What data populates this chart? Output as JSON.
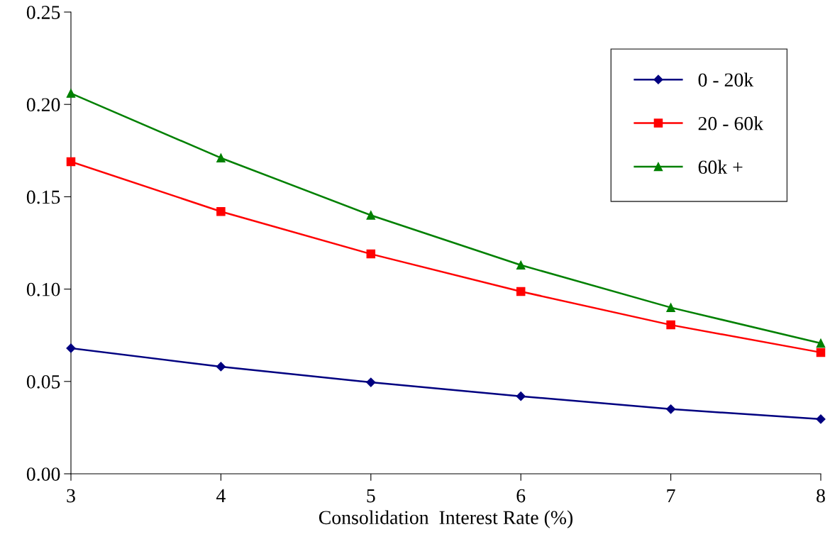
{
  "chart_data": {
    "type": "line",
    "xlabel": "Consolidation  Interest Rate (%)",
    "x": [
      3,
      4,
      5,
      6,
      7,
      8
    ],
    "xlim": [
      3,
      8
    ],
    "xticks": [
      3,
      4,
      5,
      6,
      7,
      8
    ],
    "ylim": [
      0,
      0.25
    ],
    "yticks": [
      {
        "value": 0,
        "label": "0.00"
      },
      {
        "value": 0.05,
        "label": "0.05"
      },
      {
        "value": 0.1,
        "label": "0.10"
      },
      {
        "value": 0.15,
        "label": "0.15"
      },
      {
        "value": 0.2,
        "label": "0.20"
      },
      {
        "value": 0.25,
        "label": "0.25"
      }
    ],
    "grid": false,
    "legend": "top right",
    "series": [
      {
        "name": "0 - 20k",
        "color": "#000080",
        "marker": "diamond",
        "values": [
          0.068,
          0.058,
          0.0495,
          0.042,
          0.035,
          0.0296
        ]
      },
      {
        "name": "20 - 60k",
        "color": "#ff0000",
        "marker": "square",
        "values": [
          0.169,
          0.142,
          0.119,
          0.0987,
          0.0806,
          0.0657
        ]
      },
      {
        "name": "60k +",
        "color": "#008000",
        "marker": "triangle",
        "values": [
          0.206,
          0.171,
          0.14,
          0.113,
          0.09,
          0.0707
        ]
      }
    ]
  }
}
